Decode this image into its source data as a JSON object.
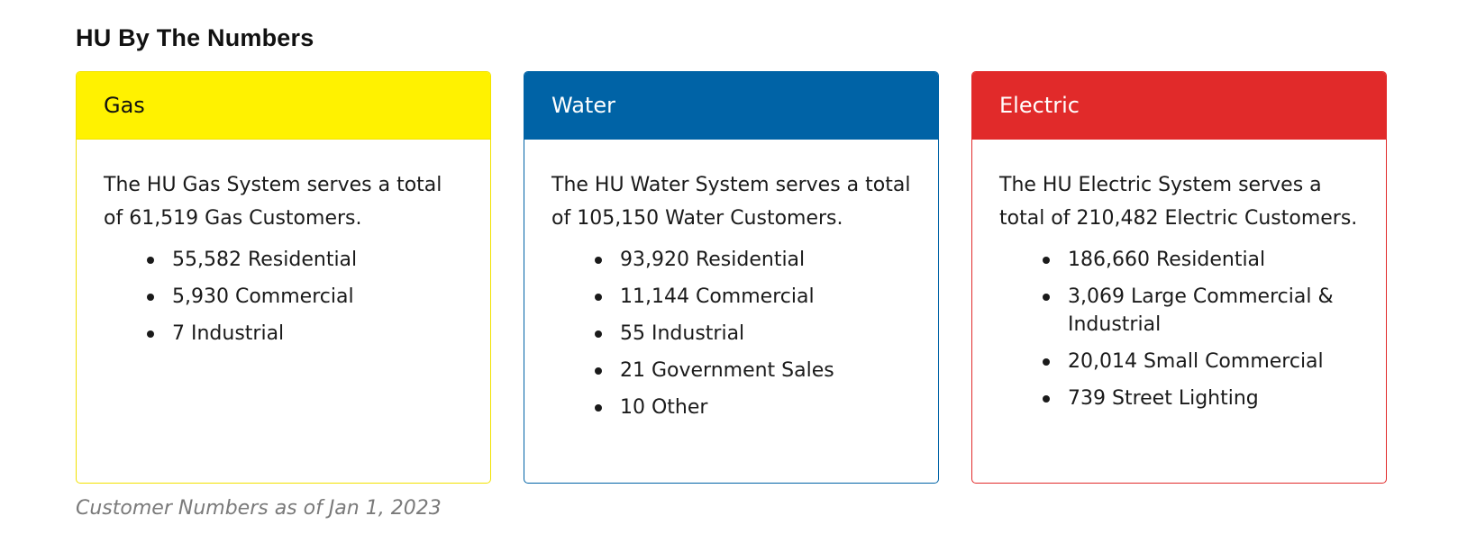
{
  "page_title": "HU By The Numbers",
  "cards": [
    {
      "title": "Gas",
      "header_bg": "#fff200",
      "header_text_color": "#111111",
      "border_color": "#f2e200",
      "description": "The HU Gas System serves a total of 61,519 Gas Customers.",
      "items": [
        "55,582 Residential",
        "5,930 Commercial",
        "7 Industrial"
      ]
    },
    {
      "title": "Water",
      "header_bg": "#0063a6",
      "header_text_color": "#ffffff",
      "border_color": "#0063a6",
      "description": "The HU Water System serves a total of 105,150 Water Customers.",
      "items": [
        "93,920 Residential",
        "11,144 Commercial",
        "55 Industrial",
        "21 Government Sales",
        "10 Other"
      ]
    },
    {
      "title": "Electric",
      "header_bg": "#e12a2a",
      "header_text_color": "#ffffff",
      "border_color": "#e12a2a",
      "description": "The HU Electric System serves a total of 210,482 Electric Customers.",
      "items": [
        "186,660 Residential",
        "3,069 Large Commercial & Industrial",
        "20,014 Small Commercial",
        "739 Street Lighting"
      ]
    }
  ],
  "footnote": "Customer Numbers as of Jan 1, 2023"
}
